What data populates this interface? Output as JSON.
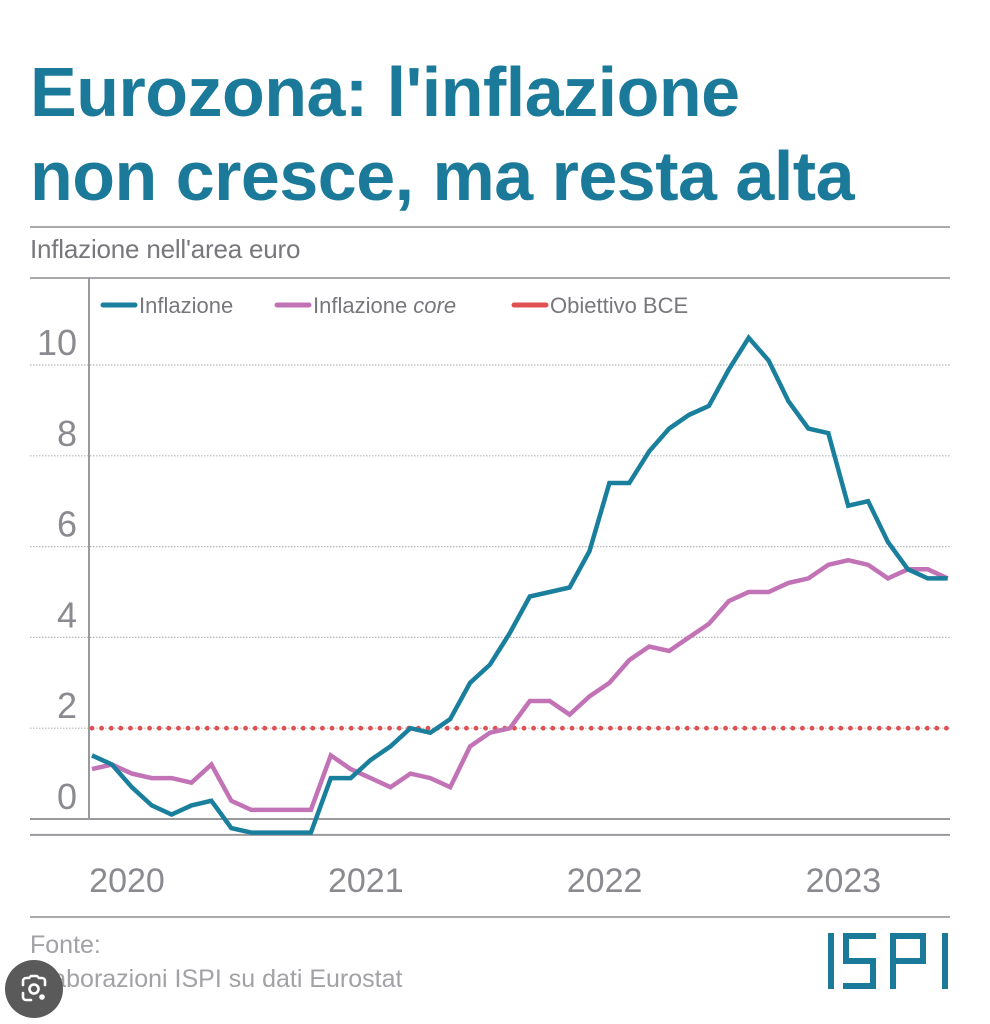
{
  "header": {
    "title_line1": "Eurozona: l'inflazione",
    "title_line2": "non cresce, ma resta alta",
    "subtitle": "Inflazione nell'area euro"
  },
  "footer": {
    "source_label": "Fonte:",
    "source_text": "Elaborazioni ISPI su dati Eurostat",
    "logo_text": "ISPI"
  },
  "overlay": {
    "lens_button": "google-lens-icon"
  },
  "colors": {
    "brand": "#1b7a99",
    "headline_series": "#1a7f9c",
    "core_series": "#c173b6",
    "target_line": "#e05050",
    "grid": "#b5b5b8",
    "axis_text": "#8a8a90"
  },
  "chart_data": {
    "type": "line",
    "title": "Eurozona: l'inflazione non cresce, ma resta alta",
    "subtitle": "Inflazione nell'area euro",
    "xlabel": "",
    "ylabel": "",
    "ylim": [
      -0.35,
      10.5
    ],
    "yticks": [
      0,
      2,
      4,
      6,
      8,
      10
    ],
    "ytick_labels": [
      "0",
      "2",
      "4",
      "6",
      "8",
      "10"
    ],
    "xtick_labels": [
      "2020",
      "2021",
      "2022",
      "2023"
    ],
    "xtick_index": [
      0,
      12,
      24,
      36
    ],
    "grid": true,
    "legend_position": "top-left",
    "x": [
      "2020-01",
      "2020-02",
      "2020-03",
      "2020-04",
      "2020-05",
      "2020-06",
      "2020-07",
      "2020-08",
      "2020-09",
      "2020-10",
      "2020-11",
      "2020-12",
      "2021-01",
      "2021-02",
      "2021-03",
      "2021-04",
      "2021-05",
      "2021-06",
      "2021-07",
      "2021-08",
      "2021-09",
      "2021-10",
      "2021-11",
      "2021-12",
      "2022-01",
      "2022-02",
      "2022-03",
      "2022-04",
      "2022-05",
      "2022-06",
      "2022-07",
      "2022-08",
      "2022-09",
      "2022-10",
      "2022-11",
      "2022-12",
      "2023-01",
      "2023-02",
      "2023-03",
      "2023-04",
      "2023-05",
      "2023-06",
      "2023-07",
      "2023-08"
    ],
    "series": [
      {
        "name": "Inflazione",
        "legend_main": "Inflazione",
        "legend_italic": "",
        "color": "#1a7f9c",
        "values": [
          1.4,
          1.2,
          0.7,
          0.3,
          0.1,
          0.3,
          0.4,
          -0.2,
          -0.3,
          -0.3,
          -0.3,
          -0.3,
          0.9,
          0.9,
          1.3,
          1.6,
          2.0,
          1.9,
          2.2,
          3.0,
          3.4,
          4.1,
          4.9,
          5.0,
          5.1,
          5.9,
          7.4,
          7.4,
          8.1,
          8.6,
          8.9,
          9.1,
          9.9,
          10.6,
          10.1,
          9.2,
          8.6,
          8.5,
          6.9,
          7.0,
          6.1,
          5.5,
          5.3,
          5.3
        ]
      },
      {
        "name": "Inflazione core",
        "legend_main": "Inflazione ",
        "legend_italic": "core",
        "color": "#c173b6",
        "values": [
          1.1,
          1.2,
          1.0,
          0.9,
          0.9,
          0.8,
          1.2,
          0.4,
          0.2,
          0.2,
          0.2,
          0.2,
          1.4,
          1.1,
          0.9,
          0.7,
          1.0,
          0.9,
          0.7,
          1.6,
          1.9,
          2.0,
          2.6,
          2.6,
          2.3,
          2.7,
          3.0,
          3.5,
          3.8,
          3.7,
          4.0,
          4.3,
          4.8,
          5.0,
          5.0,
          5.2,
          5.3,
          5.6,
          5.7,
          5.6,
          5.3,
          5.5,
          5.5,
          5.3
        ]
      }
    ],
    "reference_lines": [
      {
        "name": "Obiettivo BCE",
        "legend_main": "Obiettivo BCE",
        "value": 2,
        "style": "dotted",
        "color": "#e05050"
      }
    ]
  }
}
